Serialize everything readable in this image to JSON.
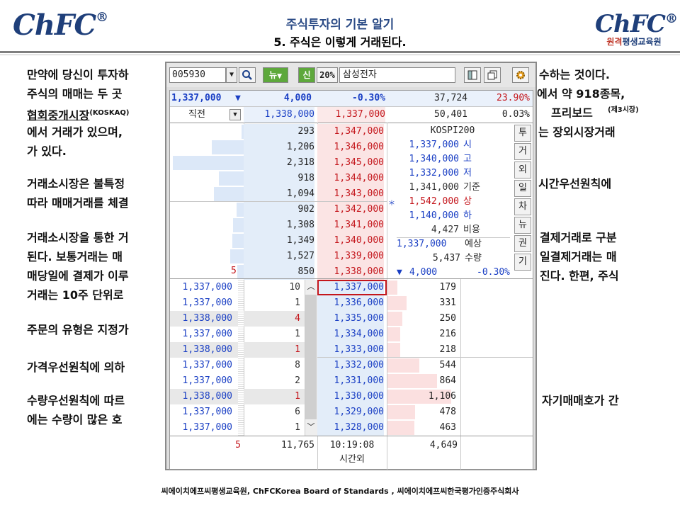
{
  "header": {
    "logo_text": "ChFC",
    "logo_reg": "®",
    "title": "주식투자의 기본 알기",
    "subtitle": "5. 주식은 이렇게 거래된다.",
    "logo_right_text": "ChFC",
    "logo_right_sub_a": "원격",
    "logo_right_sub_b": "평생교육원"
  },
  "body_lines": [
    [
      "만약에 당신이 투자하",
      "수하는 것이다."
    ],
    [
      "주식의 매매는 두 곳",
      "에서 약 918종목,"
    ],
    [
      "협회중개시장",
      "(KOSKAQ)",
      "프리보드",
      "(제3시장)"
    ],
    [
      "에서 거래가 있으며,",
      "는 장외시장거래"
    ],
    [
      "가 있다."
    ],
    [
      "거래소시장은 불특정",
      "시간우선원칙에"
    ],
    [
      "따라 매매거래를 체결"
    ],
    [
      "거래소시장을 통한 거",
      "결제거래로 구분"
    ],
    [
      "된다. 보통거래는 매",
      "일결제거래는 매"
    ],
    [
      "매당일에 결제가 이루",
      "진다. 한편, 주식"
    ],
    [
      "거래는 10주 단위로"
    ],
    [
      "주문의 유형은 지정가"
    ],
    [
      "가격우선원칙에 의하"
    ],
    [
      "수량우선원칙에 따르",
      "자기매매호가 간"
    ],
    [
      "에는 수량이 많은 호"
    ]
  ],
  "footer": "씨에이치에프씨평생교육원,  ChFCKorea  Board  of  Standards ,  씨에이치에프씨한국평가인증주식회사",
  "hts": {
    "code": "005930",
    "tb_news": "뉴",
    "tb_credit": "신",
    "tb_margin": "20%",
    "stock_name": "삼성전자",
    "summary": {
      "price": "1,337,000",
      "arrow": "▼",
      "change": "4,000",
      "rate": "-0.30%",
      "volume": "37,724",
      "turnover": "23.90%",
      "prev_label": "직전",
      "prev_bid": "1,338,000",
      "prev_ask": "1,337,000",
      "prev_vol": "50,401",
      "prev_rate": "0.03%"
    },
    "asks": [
      {
        "qty": "293",
        "price": "1,347,000",
        "bar": 0.03
      },
      {
        "qty": "1,206",
        "price": "1,346,000",
        "bar": 0.45
      },
      {
        "qty": "2,318",
        "price": "1,345,000",
        "bar": 1.0
      },
      {
        "qty": "918",
        "price": "1,344,000",
        "bar": 0.35
      },
      {
        "qty": "1,094",
        "price": "1,343,000",
        "bar": 0.42
      },
      {
        "qty": "902",
        "price": "1,342,000",
        "bar": 0.1
      },
      {
        "qty": "1,308",
        "price": "1,341,000",
        "bar": 0.15
      },
      {
        "qty": "1,349",
        "price": "1,340,000",
        "bar": 0.16
      },
      {
        "qty": "1,527",
        "price": "1,339,000",
        "bar": 0.19
      },
      {
        "qty": "850",
        "price": "1,338,000",
        "bar": 0.09
      }
    ],
    "ask_change_marker": "5",
    "info": {
      "index": "KOSPI200",
      "rows": [
        {
          "v": "1,337,000",
          "l": "시",
          "c": "blue"
        },
        {
          "v": "1,340,000",
          "l": "고",
          "c": "blue"
        },
        {
          "v": "1,332,000",
          "l": "저",
          "c": "blue"
        },
        {
          "v": "1,341,000",
          "l": "기준",
          "c": "gray"
        },
        {
          "v": "1,542,000",
          "l": "상",
          "c": "red"
        },
        {
          "v": "1,140,000",
          "l": "하",
          "c": "blue"
        },
        {
          "v": "4,427",
          "l": "비용",
          "c": "gray"
        }
      ],
      "exp_price": "1,337,000",
      "exp_label": "예상",
      "exp_qty": "5,437",
      "exp_qty_label": "수량",
      "exp_arrow": "▼",
      "exp_change": "4,000",
      "exp_rate": "-0.30%"
    },
    "tabs": [
      "투",
      "거",
      "외",
      "일",
      "차",
      "뉴",
      "권",
      "기"
    ],
    "trades": [
      {
        "p": "1,337,000",
        "q": "10",
        "qc": "gray"
      },
      {
        "p": "1,337,000",
        "q": "1",
        "qc": "gray"
      },
      {
        "p": "1,338,000",
        "q": "4",
        "qc": "red"
      },
      {
        "p": "1,337,000",
        "q": "1",
        "qc": "gray"
      },
      {
        "p": "1,338,000",
        "q": "1",
        "qc": "red"
      },
      {
        "p": "1,337,000",
        "q": "8",
        "qc": "gray"
      },
      {
        "p": "1,337,000",
        "q": "2",
        "qc": "gray"
      },
      {
        "p": "1,338,000",
        "q": "1",
        "qc": "red"
      },
      {
        "p": "1,337,000",
        "q": "6",
        "qc": "gray"
      },
      {
        "p": "1,337,000",
        "q": "1",
        "qc": "gray"
      }
    ],
    "bids": [
      {
        "price": "1,337,000",
        "qty": "179",
        "bar": 0.14
      },
      {
        "price": "1,336,000",
        "qty": "331",
        "bar": 0.27
      },
      {
        "price": "1,335,000",
        "qty": "250",
        "bar": 0.21
      },
      {
        "price": "1,334,000",
        "qty": "216",
        "bar": 0.18
      },
      {
        "price": "1,333,000",
        "qty": "218",
        "bar": 0.18
      },
      {
        "price": "1,332,000",
        "qty": "544",
        "bar": 0.45
      },
      {
        "price": "1,331,000",
        "qty": "864",
        "bar": 0.7
      },
      {
        "price": "1,330,000",
        "qty": "1,106",
        "bar": 0.9
      },
      {
        "price": "1,329,000",
        "qty": "478",
        "bar": 0.39
      },
      {
        "price": "1,328,000",
        "qty": "463",
        "bar": 0.38
      }
    ],
    "totals": {
      "left": "5",
      "ask_total": "11,765",
      "time": "10:19:08",
      "time_label": "시간외",
      "bid_total": "4,649"
    }
  }
}
